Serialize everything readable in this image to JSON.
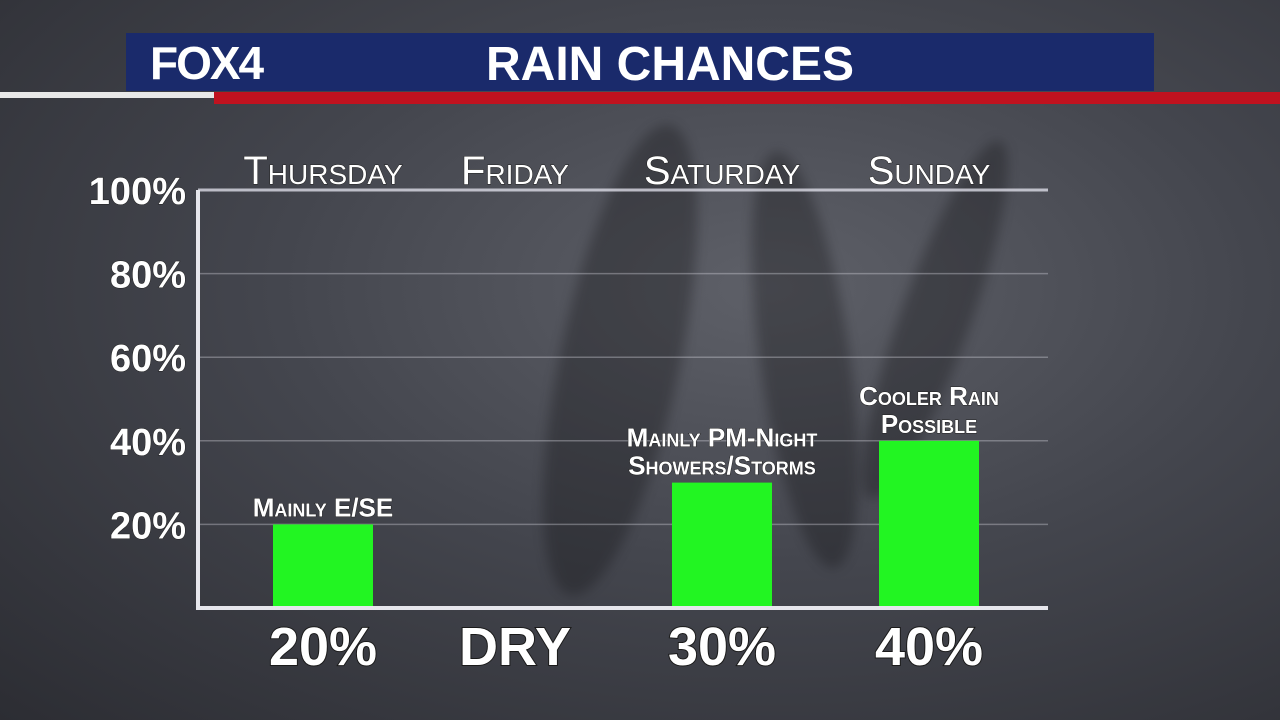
{
  "header": {
    "logo": "FOX4",
    "title": "RAIN CHANCES"
  },
  "colors": {
    "header_bg": "#1a2a6b",
    "accent_red": "#c0121f",
    "bar_green": "#22f522"
  },
  "chart_data": {
    "type": "bar",
    "categories": [
      "Thursday",
      "Friday",
      "Saturday",
      "Sunday"
    ],
    "values": [
      20,
      0,
      30,
      40
    ],
    "bar_labels": [
      "20%",
      "DRY",
      "30%",
      "40%"
    ],
    "annotations": [
      [
        "Mainly E/SE"
      ],
      [],
      [
        "Mainly PM-Night",
        "Showers/Storms"
      ],
      [
        "Cooler Rain",
        "Possible"
      ]
    ],
    "y_ticks": [
      "20%",
      "40%",
      "60%",
      "80%",
      "100%"
    ],
    "y_tick_values": [
      20,
      40,
      60,
      80,
      100
    ],
    "ylim": [
      0,
      100
    ],
    "grid": true,
    "title": "RAIN CHANCES"
  }
}
